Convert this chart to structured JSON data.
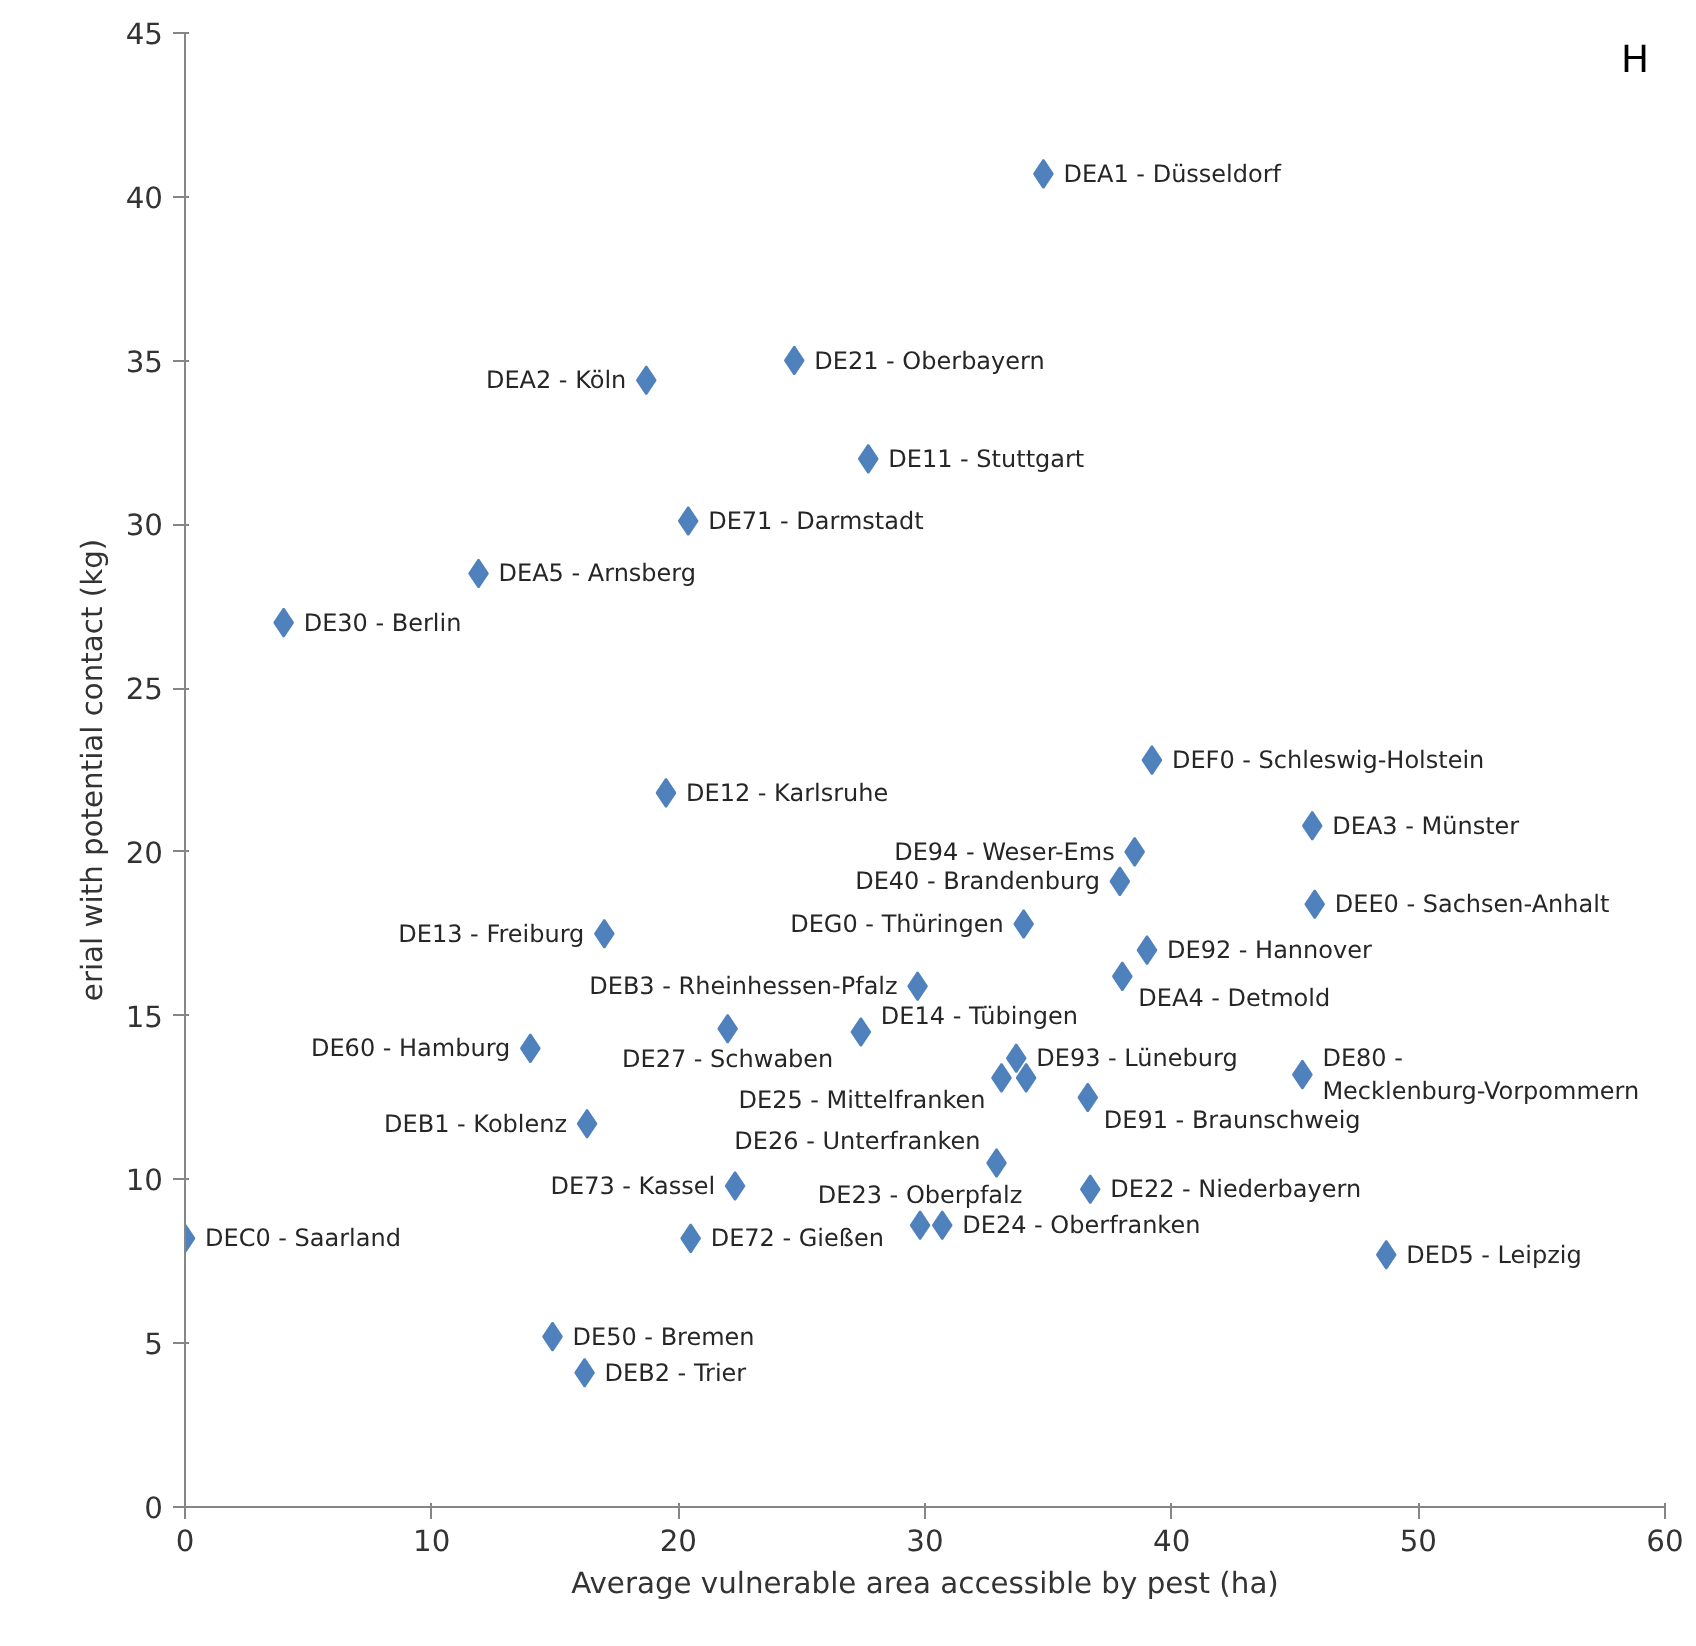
{
  "chart_data": {
    "type": "scatter",
    "xlabel": "Average vulnerable area accessible by pest (ha)",
    "ylabel": "erial with potential contact (kg)",
    "xlim": [
      0,
      60
    ],
    "xticks": [
      0,
      10,
      20,
      30,
      40,
      50,
      60
    ],
    "ylim": [
      0,
      45
    ],
    "yticks": [
      0,
      5,
      10,
      15,
      20,
      25,
      30,
      35,
      40,
      45
    ],
    "grid": false,
    "marker": "diamond",
    "annotations": [
      "H"
    ],
    "series": [
      {
        "color": "#4f81bd",
        "x": [
          34.8,
          24.7,
          18.7,
          27.7,
          20.4,
          11.9,
          4.0,
          39.2,
          19.5,
          45.7,
          38.5,
          37.9,
          45.8,
          34.0,
          17.0,
          39.0,
          29.7,
          38.0,
          22.0,
          27.4,
          14.0,
          16.3,
          33.7,
          33.1,
          36.6,
          45.3,
          34.1,
          32.9,
          36.7,
          22.3,
          29.8,
          30.7,
          20.5,
          0.0,
          48.7,
          14.9,
          16.2
        ],
        "values": [
          40.7,
          35.0,
          34.4,
          32.0,
          30.1,
          28.5,
          27.0,
          22.8,
          21.8,
          20.8,
          20.0,
          19.1,
          18.4,
          17.8,
          17.5,
          17.0,
          15.9,
          16.2,
          14.6,
          14.5,
          14.0,
          11.7,
          13.7,
          13.1,
          12.5,
          13.2,
          13.1,
          10.5,
          9.7,
          9.8,
          8.6,
          8.6,
          8.2,
          8.2,
          7.7,
          5.2,
          4.1
        ],
        "value_labels": [
          "DEA1 - Düsseldorf",
          "DE21 - Oberbayern",
          "DEA2 - Köln",
          "DE11 - Stuttgart",
          "DE71 - Darmstadt",
          "DEA5 - Arnsberg",
          "DE30 - Berlin",
          "DEF0 - Schleswig-Holstein",
          "DE12 - Karlsruhe",
          "DEA3 - Münster",
          "DE94 - Weser-Ems",
          "DE40 - Brandenburg",
          "DEE0 - Sachsen-Anhalt",
          "DEG0 - Thüringen",
          "DE13 - Freiburg",
          "DE92 - Hannover",
          "DEB3 - Rheinhessen-Pfalz",
          "DEA4 - Detmold",
          "DE27 - Schwaben",
          "DE14 - Tübingen",
          "DE60 - Hamburg",
          "DEB1 - Koblenz",
          "DE93 - Lüneburg",
          "DE25 - Mittelfranken",
          "DE91 - Braunschweig",
          "DE80 - Mecklenburg-Vorpommern",
          null,
          "DE26 - Unterfranken",
          "DE22 - Niederbayern",
          "DE73 - Kassel",
          "DE23 - Oberpfalz",
          "DE24 - Oberfranken",
          "DE72 - Gießen",
          "DEC0 - Saarland",
          "DED5 - Leipzig",
          "DE50 - Bremen",
          "DEB2 - Trier"
        ]
      }
    ]
  }
}
